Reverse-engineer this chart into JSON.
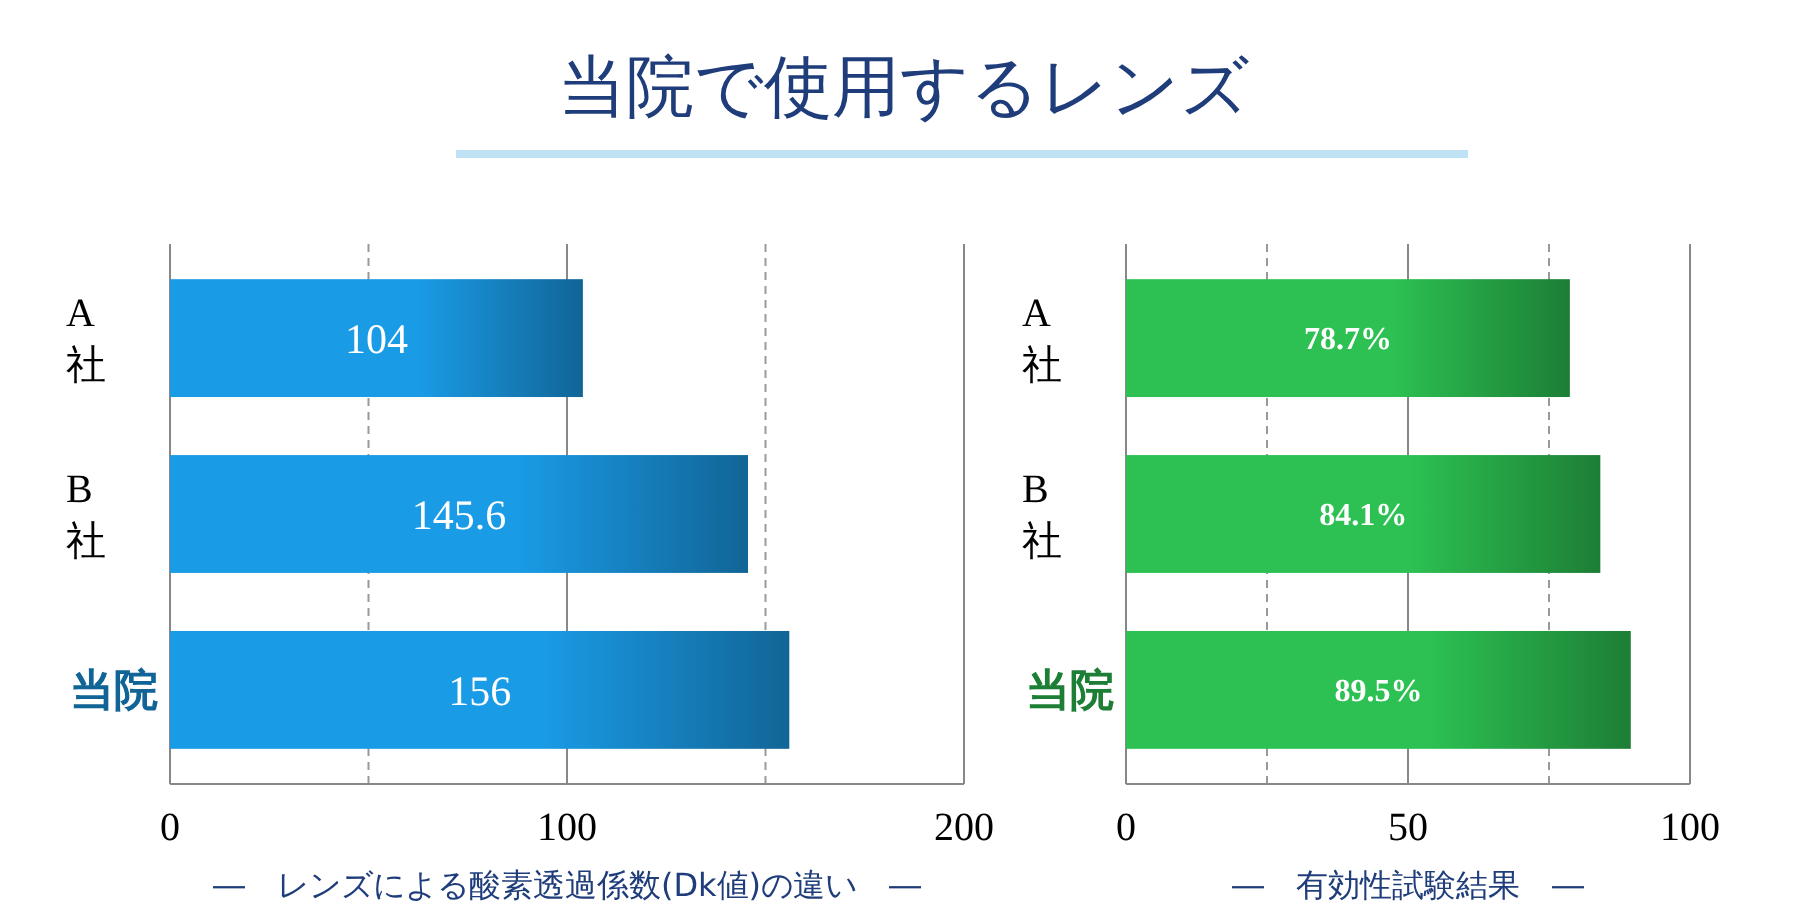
{
  "chart_data": [
    {
      "type": "bar",
      "orientation": "horizontal",
      "title": "当院で使用するレンズ",
      "xlabel": "―　レンズによる酸素透過係数(Dk値)の違い　―",
      "categories": [
        "A社",
        "B社",
        "当院"
      ],
      "values": [
        104,
        145.6,
        156
      ],
      "color": "#1a9be6",
      "data_labels": true,
      "xlim": [
        0,
        200
      ],
      "xticks": [
        0,
        {
          "value": 50,
          "label": null
        },
        100,
        {
          "value": 150,
          "label": null
        },
        200
      ],
      "grid": "x",
      "ref_lines": [
        {
          "axis": "x",
          "value": 100,
          "color": "#888888",
          "line_style": "solid"
        }
      ]
    },
    {
      "type": "bar",
      "orientation": "horizontal",
      "xlabel": "―　有効性試験結果　―",
      "categories": [
        "A社",
        "B社",
        "当院"
      ],
      "values": [
        78.7,
        84.1,
        89.5
      ],
      "value_labels": [
        "78.7%",
        "84.1%",
        "89.5%"
      ],
      "color": "#2cc152",
      "xlim": [
        0,
        100
      ],
      "xticks": [
        0,
        {
          "value": 25,
          "label": null
        },
        50,
        {
          "value": 75,
          "label": null
        },
        100
      ],
      "grid": "x",
      "ref_lines": [
        {
          "axis": "x",
          "value": 50,
          "color": "#888888",
          "line_style": "solid"
        }
      ]
    }
  ]
}
